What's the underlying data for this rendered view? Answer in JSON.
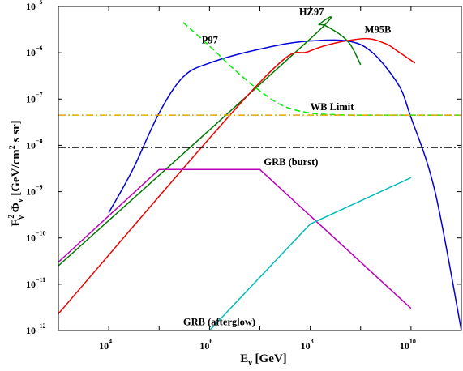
{
  "chart_data": {
    "type": "line",
    "title": "",
    "xscale": "log",
    "yscale": "log",
    "xlim": [
      1000,
      100000000000.0
    ],
    "ylim": [
      1e-12,
      1e-05
    ],
    "xlabel": {
      "main": "E",
      "sub": "ν",
      "rest": " [GeV]"
    },
    "ylabel": {
      "pre": "E",
      "pre_sup": "2",
      "pre_sub": "ν",
      "mid": " Φ",
      "mid_sub": "ν",
      "rest": "  [GeV/cm",
      "rest_sup": "2",
      "tail": " s sr]"
    },
    "xticks": [
      {
        "value": 10000,
        "base": "10",
        "exp": "4"
      },
      {
        "value": 1000000,
        "base": "10",
        "exp": "6"
      },
      {
        "value": 100000000,
        "base": "10",
        "exp": "8"
      },
      {
        "value": 10000000000,
        "base": "10",
        "exp": "10"
      }
    ],
    "yticks": [
      {
        "value": 1e-12,
        "base": "10",
        "exp": "−12"
      },
      {
        "value": 1e-11,
        "base": "10",
        "exp": "−11"
      },
      {
        "value": 1e-10,
        "base": "10",
        "exp": "−10"
      },
      {
        "value": 1e-09,
        "base": "10",
        "exp": "−9"
      },
      {
        "value": 1e-08,
        "base": "10",
        "exp": "−8"
      },
      {
        "value": 1e-07,
        "base": "10",
        "exp": "−7"
      },
      {
        "value": 1e-06,
        "base": "10",
        "exp": "−6"
      },
      {
        "value": 1e-05,
        "base": "10",
        "exp": "−5"
      }
    ],
    "series": [
      {
        "name": "P97",
        "color": "#0000dd",
        "dash": "solid",
        "x": [
          10000,
          30000,
          100000,
          300000,
          1000000,
          10000000,
          100000000,
          1000000000,
          5000000000,
          10000000000,
          30000000000,
          100000000000
        ],
        "y": [
          3.5e-10,
          3e-09,
          5e-08,
          3e-07,
          6e-07,
          1.2e-06,
          1.8e-06,
          1.5e-06,
          2.5e-07,
          4e-08,
          1e-09,
          1e-12
        ]
      },
      {
        "name": "HZ97",
        "color": "#007700",
        "dash": "solid",
        "x": [
          1000,
          100000000,
          150000000,
          300000000,
          600000000,
          1000000000
        ],
        "y": [
          2.5e-11,
          2e-06,
          4e-06,
          3e-06,
          1.6e-06,
          5.5e-07
        ]
      },
      {
        "name": "M95B",
        "color": "#ee0000",
        "dash": "solid",
        "x": [
          1000,
          10000000,
          100000000,
          1000000000,
          3000000000,
          6000000000,
          12000000000
        ],
        "y": [
          2.3e-12,
          2.3e-07,
          1.1e-06,
          2e-06,
          1.6e-06,
          1e-06,
          6e-07
        ]
      },
      {
        "name": "WB Limit",
        "color": "#00ee00",
        "dash": "dashed",
        "x": [
          300000,
          1000000,
          3000000,
          10000000,
          30000000,
          100000000,
          300000000,
          1000000000,
          100000000000
        ],
        "y": [
          4.5e-06,
          1.4e-06,
          4.5e-07,
          1.5e-07,
          7e-08,
          5e-08,
          4.6e-08,
          4.5e-08,
          4.5e-08
        ]
      },
      {
        "name": "",
        "color": "#ddaa00",
        "dash": "dashdot",
        "x": [
          1000,
          100000000000
        ],
        "y": [
          4.5e-08,
          4.5e-08
        ]
      },
      {
        "name": "",
        "color": "#000000",
        "dash": "dashdot",
        "x": [
          1000,
          100000000000
        ],
        "y": [
          9e-09,
          9e-09
        ]
      },
      {
        "name": "GRB (burst)",
        "color": "#bb00bb",
        "dash": "solid",
        "x": [
          1000,
          100000,
          10000000,
          10000000000
        ],
        "y": [
          3e-11,
          3e-09,
          3e-09,
          3e-12
        ]
      },
      {
        "name": "GRB (afterglow)",
        "color": "#00bbbb",
        "dash": "solid",
        "x": [
          1000000,
          100000000,
          10000000000
        ],
        "y": [
          1e-12,
          2e-10,
          2e-09
        ]
      }
    ],
    "annotations": [
      {
        "text": "P97",
        "x": 700000,
        "y": 1.6e-06
      },
      {
        "text": "HZ97",
        "x": 60000000,
        "y": 6.5e-06
      },
      {
        "text": "M95B",
        "x": 1200000000,
        "y": 2.7e-06
      },
      {
        "text": "WB Limit",
        "x": 100000000,
        "y": 5.7e-08
      },
      {
        "text": "GRB (burst)",
        "x": 12000000,
        "y": 3.7e-09
      },
      {
        "text": "GRB (afterglow)",
        "x": 300000,
        "y": 1.3e-12
      }
    ]
  }
}
